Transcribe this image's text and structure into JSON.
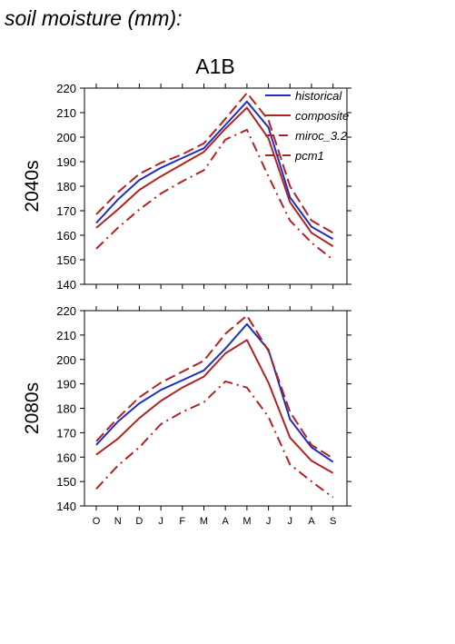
{
  "heading": "soil moisture (mm):",
  "scenario": "A1B",
  "colors": {
    "historical": "#1f2fbf",
    "model": "#b22222"
  },
  "chart_data": [
    {
      "type": "line",
      "title": "A1B",
      "row_label": "2040s",
      "categories": [
        "O",
        "N",
        "D",
        "J",
        "F",
        "M",
        "A",
        "M",
        "J",
        "J",
        "A",
        "S"
      ],
      "ylim": [
        140,
        220
      ],
      "yticks": [
        140,
        150,
        160,
        170,
        180,
        190,
        200,
        210,
        220
      ],
      "legend_position": "top-right",
      "series": [
        {
          "name": "historical",
          "style": "solid",
          "color": "#1f2fbf",
          "values": [
            165,
            174.5,
            182.5,
            187.5,
            191.5,
            195.5,
            205,
            214.5,
            204,
            175.5,
            163.5,
            158.5
          ]
        },
        {
          "name": "composite",
          "style": "solid",
          "color": "#b22222",
          "values": [
            163,
            170.5,
            178.5,
            184,
            189,
            194,
            203.5,
            212,
            199.5,
            173.5,
            161,
            155.5
          ]
        },
        {
          "name": "miroc_3.2",
          "style": "dashed",
          "color": "#b22222",
          "values": [
            168.5,
            177.5,
            185,
            189.5,
            193,
            197.5,
            207.5,
            218,
            207,
            180,
            166,
            161
          ]
        },
        {
          "name": "pcm1",
          "style": "dashdot",
          "color": "#b22222",
          "values": [
            154.5,
            163,
            170.5,
            177,
            182,
            186.5,
            199,
            203,
            184,
            166,
            157,
            150
          ]
        }
      ]
    },
    {
      "type": "line",
      "row_label": "2080s",
      "categories": [
        "O",
        "N",
        "D",
        "J",
        "F",
        "M",
        "A",
        "M",
        "J",
        "J",
        "A",
        "S"
      ],
      "ylim": [
        140,
        220
      ],
      "yticks": [
        140,
        150,
        160,
        170,
        180,
        190,
        200,
        210,
        220
      ],
      "series": [
        {
          "name": "historical",
          "style": "solid",
          "color": "#1f2fbf",
          "values": [
            165,
            174.5,
            182,
            187.5,
            191.5,
            195.5,
            204.5,
            214.5,
            204,
            175.5,
            164,
            158
          ]
        },
        {
          "name": "composite",
          "style": "solid",
          "color": "#b22222",
          "values": [
            161,
            167.5,
            176,
            183,
            188.5,
            193,
            202.5,
            208,
            190.5,
            168,
            158.5,
            153.5
          ]
        },
        {
          "name": "miroc_3.2",
          "style": "dashed",
          "color": "#b22222",
          "values": [
            166.5,
            176,
            184.5,
            190.5,
            195,
            199.5,
            210.5,
            218,
            203.5,
            178.5,
            165,
            159.5
          ]
        },
        {
          "name": "pcm1",
          "style": "dashdot",
          "color": "#b22222",
          "values": [
            147,
            156.5,
            164,
            173.5,
            178.5,
            182.5,
            191,
            188.5,
            176.5,
            157,
            150,
            143.5
          ]
        }
      ]
    }
  ]
}
